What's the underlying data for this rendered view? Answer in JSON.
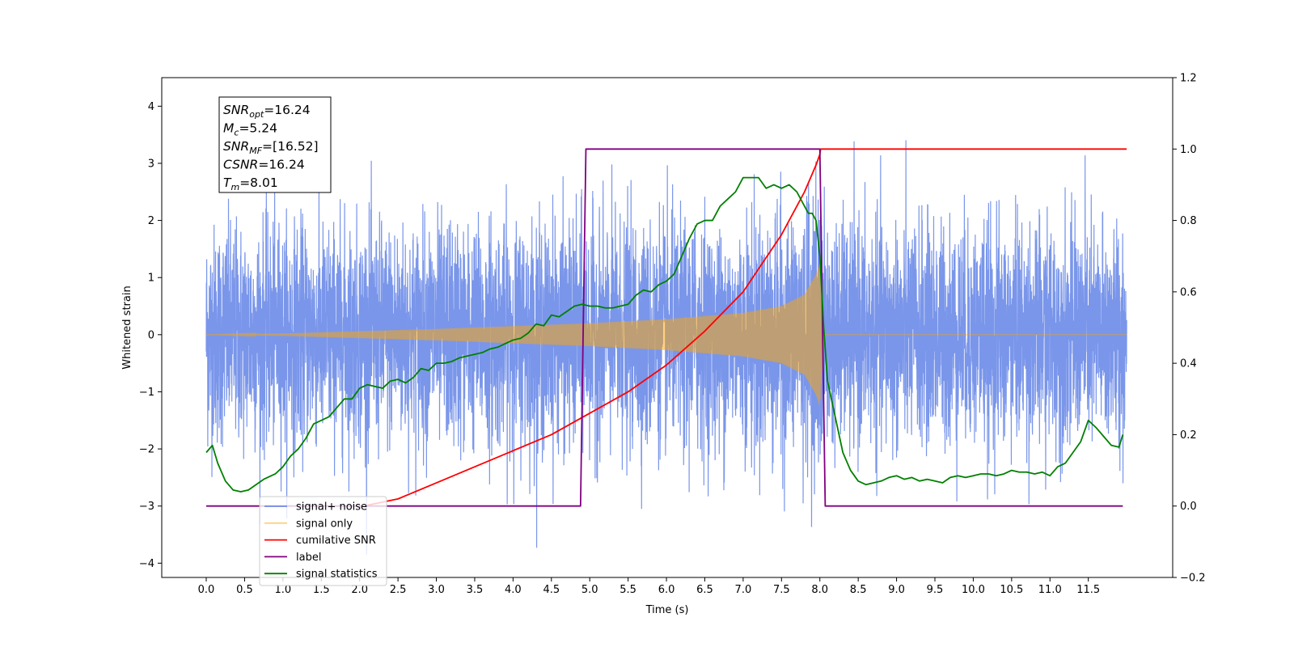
{
  "chart_data": {
    "type": "line",
    "xlabel": "Time (s)",
    "ylabel_left": "Whitened strain",
    "xlim": [
      -0.58,
      12.6
    ],
    "ylim_left": [
      -4.25,
      4.5
    ],
    "ylim_right": [
      -0.2,
      1.2
    ],
    "x_ticks": [
      0.0,
      0.5,
      1.0,
      1.5,
      2.0,
      2.5,
      3.0,
      3.5,
      4.0,
      4.5,
      5.0,
      5.5,
      6.0,
      6.5,
      7.0,
      7.5,
      8.0,
      8.5,
      9.0,
      9.5,
      10.0,
      10.5,
      11.0,
      11.5
    ],
    "x_tick_labels": [
      "0.0",
      "0.5",
      "1.0",
      "1.5",
      "2.0",
      "2.5",
      "3.0",
      "3.5",
      "4.0",
      "4.5",
      "5.0",
      "5.5",
      "6.0",
      "6.5",
      "7.0",
      "7.5",
      "8.0",
      "8.5",
      "9.0",
      "9.5",
      "10.0",
      "10.5",
      "11.0",
      "11.5"
    ],
    "y_ticks_left": [
      -4,
      -3,
      -2,
      -1,
      0,
      1,
      2,
      3,
      4
    ],
    "y_tick_labels_left": [
      "−4",
      "−3",
      "−2",
      "−1",
      "0",
      "1",
      "2",
      "3",
      "4"
    ],
    "y_ticks_right": [
      -0.2,
      0.0,
      0.2,
      0.4,
      0.6,
      0.8,
      1.0,
      1.2
    ],
    "y_tick_labels_right": [
      "−0.2",
      "0.0",
      "0.2",
      "0.4",
      "0.6",
      "0.8",
      "1.0",
      "1.2"
    ],
    "grid": false,
    "legend_position": "bottom-left",
    "series": [
      {
        "name": "signal+ noise",
        "axis": "left",
        "color": "#4169e1",
        "opacity": 0.7,
        "noise_band": {
          "x_start": 0.0,
          "x_end": 12.0,
          "sigma": 1.0,
          "envelope_approx": [
            -2.6,
            2.9
          ],
          "peak_max": 4.1,
          "peak_min": -3.85
        }
      },
      {
        "name": "signal only",
        "axis": "left",
        "color": "#ffa500",
        "opacity": 0.5,
        "chirp_envelope": {
          "x": [
            0.0,
            1.0,
            2.0,
            3.0,
            4.0,
            5.0,
            6.0,
            7.0,
            7.5,
            7.8,
            7.95,
            8.0,
            8.05,
            12.0
          ],
          "amp": [
            0.0,
            0.02,
            0.06,
            0.1,
            0.15,
            0.2,
            0.27,
            0.38,
            0.5,
            0.7,
            1.05,
            1.25,
            0.0,
            0.0
          ]
        }
      },
      {
        "name": "cumilative SNR",
        "axis": "right",
        "color": "#ff0000",
        "x": [
          2.05,
          2.5,
          3.0,
          3.5,
          4.0,
          4.5,
          5.0,
          5.5,
          6.0,
          6.5,
          7.0,
          7.5,
          7.8,
          7.95,
          8.0,
          8.01,
          12.0
        ],
        "y": [
          0.0,
          0.02,
          0.065,
          0.11,
          0.155,
          0.2,
          0.26,
          0.32,
          0.395,
          0.49,
          0.6,
          0.76,
          0.88,
          0.955,
          0.985,
          1.0,
          1.0
        ]
      },
      {
        "name": "label",
        "axis": "right",
        "color": "#800080",
        "x": [
          0.0,
          4.88,
          4.95,
          8.0,
          8.07,
          11.95
        ],
        "y": [
          0.0,
          0.0,
          1.0,
          1.0,
          0.0,
          0.0
        ]
      },
      {
        "name": "signal statistics",
        "axis": "right",
        "color": "#008000",
        "x": [
          0.0,
          0.08,
          0.15,
          0.25,
          0.35,
          0.45,
          0.55,
          0.65,
          0.75,
          0.9,
          1.0,
          1.1,
          1.2,
          1.3,
          1.4,
          1.5,
          1.6,
          1.7,
          1.8,
          1.9,
          2.0,
          2.1,
          2.2,
          2.3,
          2.4,
          2.5,
          2.6,
          2.7,
          2.8,
          2.9,
          3.0,
          3.1,
          3.2,
          3.3,
          3.4,
          3.5,
          3.6,
          3.7,
          3.8,
          3.9,
          4.0,
          4.1,
          4.2,
          4.3,
          4.4,
          4.5,
          4.6,
          4.7,
          4.8,
          4.9,
          5.0,
          5.1,
          5.2,
          5.3,
          5.4,
          5.5,
          5.6,
          5.7,
          5.8,
          5.9,
          6.0,
          6.1,
          6.2,
          6.3,
          6.4,
          6.5,
          6.6,
          6.7,
          6.8,
          6.9,
          7.0,
          7.1,
          7.2,
          7.3,
          7.4,
          7.5,
          7.6,
          7.7,
          7.8,
          7.85,
          7.9,
          7.95,
          8.0,
          8.05,
          8.1,
          8.2,
          8.3,
          8.4,
          8.5,
          8.6,
          8.7,
          8.8,
          8.9,
          9.0,
          9.1,
          9.2,
          9.3,
          9.4,
          9.5,
          9.6,
          9.7,
          9.8,
          9.9,
          10.0,
          10.1,
          10.2,
          10.3,
          10.4,
          10.5,
          10.6,
          10.7,
          10.8,
          10.9,
          11.0,
          11.1,
          11.2,
          11.3,
          11.4,
          11.5,
          11.6,
          11.7,
          11.8,
          11.9,
          11.95
        ],
        "y": [
          0.15,
          0.17,
          0.12,
          0.07,
          0.045,
          0.04,
          0.045,
          0.06,
          0.075,
          0.09,
          0.11,
          0.14,
          0.16,
          0.19,
          0.23,
          0.24,
          0.25,
          0.275,
          0.3,
          0.3,
          0.33,
          0.34,
          0.335,
          0.33,
          0.35,
          0.355,
          0.345,
          0.36,
          0.385,
          0.38,
          0.4,
          0.4,
          0.405,
          0.415,
          0.42,
          0.425,
          0.43,
          0.44,
          0.445,
          0.455,
          0.465,
          0.47,
          0.485,
          0.51,
          0.505,
          0.535,
          0.53,
          0.545,
          0.56,
          0.565,
          0.56,
          0.56,
          0.555,
          0.555,
          0.56,
          0.565,
          0.59,
          0.605,
          0.6,
          0.62,
          0.63,
          0.65,
          0.7,
          0.75,
          0.79,
          0.8,
          0.8,
          0.84,
          0.86,
          0.88,
          0.92,
          0.92,
          0.92,
          0.89,
          0.9,
          0.89,
          0.9,
          0.88,
          0.84,
          0.82,
          0.82,
          0.8,
          0.7,
          0.5,
          0.35,
          0.25,
          0.15,
          0.1,
          0.07,
          0.06,
          0.065,
          0.07,
          0.08,
          0.085,
          0.075,
          0.08,
          0.07,
          0.075,
          0.07,
          0.065,
          0.08,
          0.085,
          0.08,
          0.085,
          0.09,
          0.09,
          0.085,
          0.09,
          0.1,
          0.095,
          0.095,
          0.09,
          0.095,
          0.085,
          0.11,
          0.12,
          0.15,
          0.18,
          0.24,
          0.22,
          0.195,
          0.17,
          0.165,
          0.2
        ]
      }
    ],
    "annotation": {
      "lines": [
        {
          "base": "SNR",
          "sub": "opt",
          "rest": "=16.24"
        },
        {
          "base": "M",
          "sub": "c",
          "rest": "=5.24"
        },
        {
          "base": "SNR",
          "sub": "MF",
          "rest": "=[16.52]"
        },
        {
          "base": "CSNR",
          "sub": "",
          "rest": "=16.24"
        },
        {
          "base": "T",
          "sub": "m",
          "rest": "=8.01"
        }
      ]
    }
  }
}
